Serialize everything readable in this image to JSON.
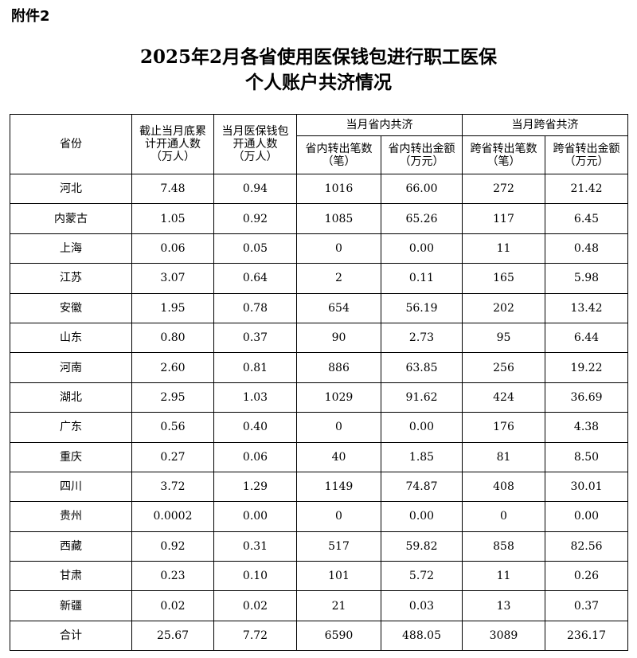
{
  "header": {
    "label": "附件2",
    "title_lines": [
      "2025年2月各省使用医保钱包进行职工医保",
      "个人账户共济情况"
    ]
  },
  "table": {
    "columns": {
      "province": "省份",
      "cumulative": "截止当月底累\n计开通人数\n（万人）",
      "monthly": "当月医保钱包\n开通人数\n（万人）",
      "groups": [
        {
          "title": "当月省内共济",
          "cols": [
            "省内转出笔数\n（笔）",
            "省内转出金额\n（万元）"
          ]
        },
        {
          "title": "当月跨省共济",
          "cols": [
            "跨省转出笔数\n（笔）",
            "跨省转出金额\n（万元）"
          ]
        }
      ]
    },
    "rows": [
      [
        "河北",
        "7.48",
        "0.94",
        "1016",
        "66.00",
        "272",
        "21.42"
      ],
      [
        "内蒙古",
        "1.05",
        "0.92",
        "1085",
        "65.26",
        "117",
        "6.45"
      ],
      [
        "上海",
        "0.06",
        "0.05",
        "0",
        "0.00",
        "11",
        "0.48"
      ],
      [
        "江苏",
        "3.07",
        "0.64",
        "2",
        "0.11",
        "165",
        "5.98"
      ],
      [
        "安徽",
        "1.95",
        "0.78",
        "654",
        "56.19",
        "202",
        "13.42"
      ],
      [
        "山东",
        "0.80",
        "0.37",
        "90",
        "2.73",
        "95",
        "6.44"
      ],
      [
        "河南",
        "2.60",
        "0.81",
        "886",
        "63.85",
        "256",
        "19.22"
      ],
      [
        "湖北",
        "2.95",
        "1.03",
        "1029",
        "91.62",
        "424",
        "36.69"
      ],
      [
        "广东",
        "0.56",
        "0.40",
        "0",
        "0.00",
        "176",
        "4.38"
      ],
      [
        "重庆",
        "0.27",
        "0.06",
        "40",
        "1.85",
        "81",
        "8.50"
      ],
      [
        "四川",
        "3.72",
        "1.29",
        "1149",
        "74.87",
        "408",
        "30.01"
      ],
      [
        "贵州",
        "0.0002",
        "0.00",
        "0",
        "0.00",
        "0",
        "0.00"
      ],
      [
        "西藏",
        "0.92",
        "0.31",
        "517",
        "59.82",
        "858",
        "82.56"
      ],
      [
        "甘肃",
        "0.23",
        "0.10",
        "101",
        "5.72",
        "11",
        "0.26"
      ],
      [
        "新疆",
        "0.02",
        "0.02",
        "21",
        "0.03",
        "13",
        "0.37"
      ],
      [
        "合计",
        "25.67",
        "7.72",
        "6590",
        "488.05",
        "3089",
        "236.17"
      ]
    ]
  }
}
